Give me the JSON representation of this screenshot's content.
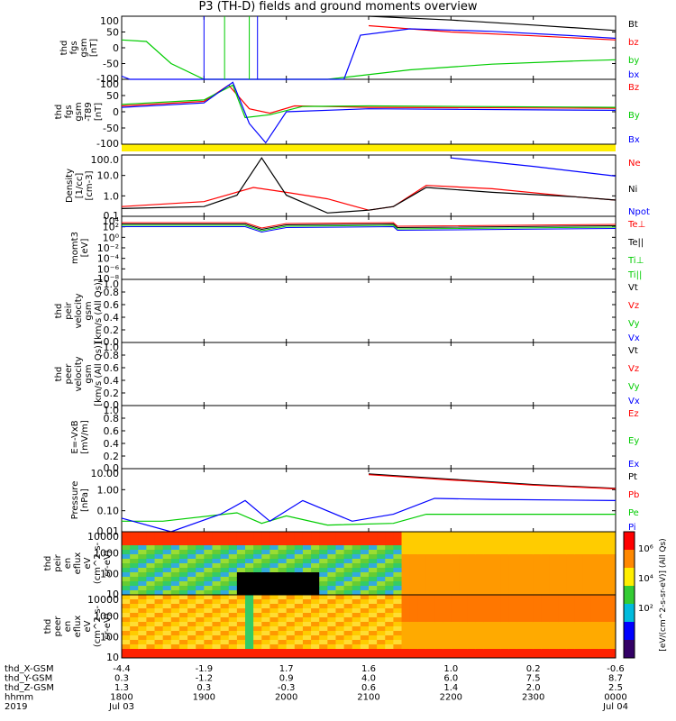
{
  "title": "P3 (TH-D) fields and ground moments overview",
  "colors": {
    "black": "#000000",
    "red": "#ff0000",
    "green": "#00cc00",
    "blue": "#0000ff",
    "yellow": "#ffee00"
  },
  "panels": [
    {
      "id": "p1",
      "ylabel": [
        "thd",
        "fgs",
        "gsm",
        "[nT]"
      ],
      "yticks": [
        "100",
        "50",
        "0",
        "-50",
        "-100"
      ],
      "legend": [
        {
          "text": "Bt",
          "color": "black"
        },
        {
          "text": "bz",
          "color": "red"
        },
        {
          "text": "by",
          "color": "green"
        },
        {
          "text": "bx",
          "color": "blue"
        }
      ]
    },
    {
      "id": "p2",
      "ylabel": [
        "thd",
        "fgs",
        "gsm",
        "-T89",
        "[nT]"
      ],
      "yticks": [
        "100",
        "50",
        "0",
        "-50",
        "-100"
      ],
      "legend": [
        {
          "text": "Bz",
          "color": "red"
        },
        {
          "text": "By",
          "color": "green"
        },
        {
          "text": "Bx",
          "color": "blue"
        }
      ]
    },
    {
      "id": "p3",
      "ylabel": [
        "Density",
        "[1/cc]",
        "[cm-3]"
      ],
      "yticks": [
        "100.0",
        "10.0",
        "1.0",
        "0.1"
      ],
      "legend": [
        {
          "text": "Ne",
          "color": "red"
        },
        {
          "text": "Ni",
          "color": "black"
        },
        {
          "text": "Npot",
          "color": "blue"
        }
      ]
    },
    {
      "id": "p4",
      "ylabel": [
        "momt3",
        "[eV]"
      ],
      "yticks": [
        "10⁴",
        "10²",
        "10⁰",
        "10⁻²",
        "10⁻⁴",
        "10⁻⁶",
        "10⁻⁸"
      ],
      "legend": [
        {
          "text": "Te⊥",
          "color": "red"
        },
        {
          "text": "Te||",
          "color": "black"
        },
        {
          "text": "Ti⊥",
          "color": "green"
        },
        {
          "text": "Ti||",
          "color": "green"
        }
      ]
    },
    {
      "id": "p5",
      "ylabel": [
        "thd",
        "peir",
        "velocity",
        "gsm",
        "[km/s (All Qs)]"
      ],
      "yticks": [
        "1.0",
        "0.8",
        "0.6",
        "0.4",
        "0.2",
        "0.0"
      ],
      "legend": [
        {
          "text": "Vt",
          "color": "black"
        },
        {
          "text": "Vz",
          "color": "red"
        },
        {
          "text": "Vy",
          "color": "green"
        },
        {
          "text": "Vx",
          "color": "blue"
        }
      ]
    },
    {
      "id": "p6",
      "ylabel": [
        "thd",
        "peer",
        "velocity",
        "gsm",
        "[km/s (All Qs)]"
      ],
      "yticks": [
        "1.0",
        "0.8",
        "0.6",
        "0.4",
        "0.2",
        "0.0"
      ],
      "legend": [
        {
          "text": "Vt",
          "color": "black"
        },
        {
          "text": "Vz",
          "color": "red"
        },
        {
          "text": "Vy",
          "color": "green"
        },
        {
          "text": "Vx",
          "color": "blue"
        }
      ]
    },
    {
      "id": "p7",
      "ylabel": [
        "E=-VxB",
        "[mV/m]"
      ],
      "yticks": [
        "1.0",
        "0.8",
        "0.6",
        "0.4",
        "0.2",
        "0.0"
      ],
      "legend": [
        {
          "text": "Ez",
          "color": "red"
        },
        {
          "text": "Ey",
          "color": "green"
        },
        {
          "text": "Ex",
          "color": "blue"
        }
      ]
    },
    {
      "id": "p8",
      "ylabel": [
        "Pressure",
        "[nPa]"
      ],
      "yticks": [
        "10.00",
        "1.00",
        "0.10",
        "0.01"
      ],
      "legend": [
        {
          "text": "Pt",
          "color": "black"
        },
        {
          "text": "Pb",
          "color": "red"
        },
        {
          "text": "Pe",
          "color": "green"
        },
        {
          "text": "Pi",
          "color": "blue"
        }
      ]
    },
    {
      "id": "p9",
      "ylabel": [
        "thd",
        "peir",
        "en",
        "eflux",
        "eV",
        "(cm^2-s-",
        "sr-eV)"
      ],
      "yticks": [
        "10000",
        "1000",
        "100",
        "10"
      ]
    },
    {
      "id": "p10",
      "ylabel": [
        "thd",
        "peer",
        "en",
        "eflux",
        "eV",
        "(cm^2-s-",
        "sr-eV)"
      ],
      "yticks": [
        "10000",
        "1000",
        "100",
        "10"
      ]
    }
  ],
  "colorbar": {
    "ticks": [
      "10⁶",
      "10⁴",
      "10²"
    ],
    "label": "[eV/(cm^2-s-sr-eV)] (All Qs)"
  },
  "xaxis": {
    "rows": [
      {
        "label": "thd_X-GSM",
        "values": [
          "-4.4",
          "-1.9",
          "1.7",
          "1.6",
          "1.0",
          "0.2",
          "-0.6"
        ]
      },
      {
        "label": "thd_Y-GSM",
        "values": [
          "0.3",
          "-1.2",
          "0.9",
          "4.0",
          "6.0",
          "7.5",
          "8.7"
        ]
      },
      {
        "label": "thd_Z-GSM",
        "values": [
          "1.3",
          "0.3",
          "-0.3",
          "0.6",
          "1.4",
          "2.0",
          "2.5"
        ]
      },
      {
        "label": "hhmm",
        "values": [
          "1800",
          "1900",
          "2000",
          "2100",
          "2200",
          "2300",
          "0000"
        ]
      },
      {
        "label": "2019",
        "values": [
          "Jul 03",
          "",
          "",
          "",
          "",
          "",
          "Jul 04"
        ]
      }
    ]
  },
  "chart_data": {
    "type": "line",
    "title": "P3 (TH-D) fields and ground moments overview",
    "x_time_ticks": [
      "1800",
      "1900",
      "2000",
      "2100",
      "2200",
      "2300",
      "0000"
    ],
    "date": "2019 Jul 03 - Jul 04",
    "panels": [
      {
        "name": "thd fgs gsm",
        "units": "nT",
        "ylim": [
          -100,
          100
        ],
        "series": [
          {
            "name": "Bt",
            "color": "black",
            "x": [
              18.0,
              21.0,
              22.0,
              23.0,
              24.0
            ],
            "y": [
              null,
              100,
              88,
              72,
              55
            ]
          },
          {
            "name": "bz",
            "color": "red",
            "x": [
              18.0,
              21.0,
              22.0,
              23.0,
              24.0
            ],
            "y": [
              null,
              70,
              50,
              38,
              25
            ]
          },
          {
            "name": "by",
            "color": "green",
            "x": [
              18.0,
              18.3,
              18.6,
              19.0,
              20.5,
              21.5,
              22.5,
              23.5,
              24.0
            ],
            "y": [
              25,
              20,
              -50,
              -100,
              -100,
              -70,
              -52,
              -42,
              -38
            ]
          },
          {
            "name": "bx",
            "color": "blue",
            "x": [
              18.0,
              18.1,
              20.7,
              20.9,
              21.5,
              22.5,
              23.5,
              24.0
            ],
            "y": [
              -90,
              -100,
              -100,
              40,
              60,
              52,
              38,
              30
            ]
          }
        ]
      },
      {
        "name": "thd fgs gsm -T89",
        "units": "nT",
        "ylim": [
          -120,
          100
        ],
        "series": [
          {
            "name": "Bz",
            "color": "red",
            "x": [
              18.0,
              19.0,
              19.3,
              19.55,
              19.8,
              20.1,
              21.0,
              24.0
            ],
            "y": [
              10,
              25,
              80,
              0,
              -15,
              10,
              5,
              2
            ]
          },
          {
            "name": "By",
            "color": "green",
            "x": [
              18.0,
              19.0,
              19.35,
              19.5,
              19.8,
              20.2,
              21.0,
              24.0
            ],
            "y": [
              15,
              30,
              80,
              -30,
              -20,
              8,
              10,
              5
            ]
          },
          {
            "name": "Bx",
            "color": "blue",
            "x": [
              18.0,
              19.0,
              19.35,
              19.55,
              19.75,
              20.0,
              21.0,
              24.0
            ],
            "y": [
              5,
              20,
              90,
              -50,
              -115,
              -10,
              0,
              -5
            ]
          }
        ]
      },
      {
        "name": "Density",
        "units": "1/cc",
        "scale": "log",
        "ylim": [
          0.05,
          300
        ],
        "series": [
          {
            "name": "Ne",
            "color": "red",
            "x": [
              18.0,
              19.0,
              19.6,
              20.0,
              20.5,
              21.0,
              21.3,
              21.7,
              22.5,
              23.5,
              24.0
            ],
            "y": [
              0.2,
              0.4,
              3,
              1.5,
              0.6,
              0.12,
              0.2,
              4,
              2.5,
              0.8,
              0.5
            ]
          },
          {
            "name": "Ni",
            "color": "black",
            "x": [
              18.0,
              19.0,
              19.4,
              19.7,
              20.0,
              20.5,
              21.0,
              21.3,
              21.7,
              22.5,
              23.5,
              24.0
            ],
            "y": [
              0.15,
              0.2,
              1,
              200,
              1,
              0.08,
              0.12,
              0.2,
              3,
              1.5,
              0.8,
              0.5
            ]
          },
          {
            "name": "Npot",
            "color": "blue",
            "x": [
              22.0,
              23.0,
              24.0
            ],
            "y": [
              200,
              60,
              15
            ]
          }
        ]
      },
      {
        "name": "Pressure",
        "units": "nPa",
        "scale": "log",
        "ylim": [
          0.005,
          20
        ],
        "series": [
          {
            "name": "Pt",
            "color": "black",
            "x": [
              21.0,
              22.0,
              23.0,
              24.0
            ],
            "y": [
              10,
              5,
              2.5,
              1.5
            ]
          },
          {
            "name": "Pb",
            "color": "red",
            "x": [
              21.0,
              22.0,
              23.0,
              24.0
            ],
            "y": [
              9,
              4.5,
              2.3,
              1.4
            ]
          },
          {
            "name": "Pe",
            "color": "green",
            "x": [
              18.0,
              18.5,
              19.4,
              19.7,
              20.0,
              20.5,
              21.3,
              21.7,
              22.5,
              24.0
            ],
            "y": [
              0.02,
              0.02,
              0.06,
              0.015,
              0.04,
              0.012,
              0.015,
              0.05,
              0.05,
              0.05
            ]
          },
          {
            "name": "Pi",
            "color": "blue",
            "x": [
              18.0,
              18.6,
              19.2,
              19.5,
              19.8,
              20.2,
              20.8,
              21.3,
              21.8,
              22.5,
              24.0
            ],
            "y": [
              0.03,
              0.004,
              0.05,
              0.3,
              0.02,
              0.3,
              0.02,
              0.05,
              0.4,
              0.35,
              0.3
            ]
          }
        ]
      }
    ]
  }
}
